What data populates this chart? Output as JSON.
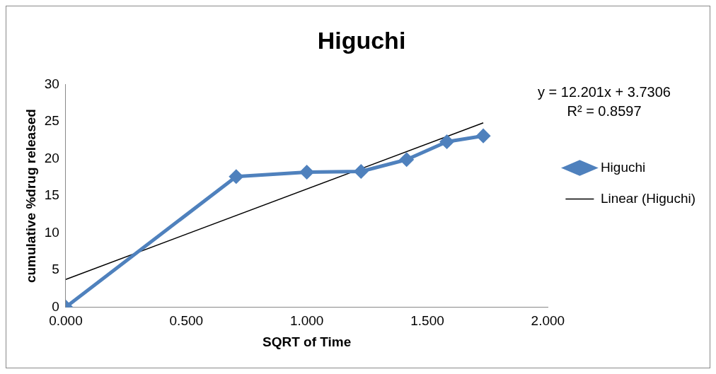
{
  "chart_data": {
    "type": "line",
    "title": "Higuchi",
    "xlabel": "SQRT of Time",
    "ylabel": "cumulative %drug released",
    "x": [
      0,
      0.707,
      1,
      1.225,
      1.414,
      1.581,
      1.732
    ],
    "series": [
      {
        "name": "Higuchi",
        "color": "#4f81bd",
        "values": [
          0,
          17.6,
          18.2,
          18.3,
          19.9,
          22.3,
          23.1
        ],
        "marker": "diamond"
      },
      {
        "name": "Linear (Higuchi)",
        "type": "line",
        "color": "#000000",
        "x": [
          0,
          1.732
        ],
        "values": [
          3.73,
          24.86
        ],
        "marker": "none"
      }
    ],
    "xlim": [
      0,
      2
    ],
    "xticks": [
      {
        "value": 0,
        "label": "0.000"
      },
      {
        "value": 0.5,
        "label": "0.500"
      },
      {
        "value": 1,
        "label": "1.000"
      },
      {
        "value": 1.5,
        "label": "1.500"
      },
      {
        "value": 2,
        "label": "2.000"
      }
    ],
    "ylim": [
      0,
      30
    ],
    "yticks": [
      0,
      5,
      10,
      15,
      20,
      25,
      30
    ],
    "grid": false,
    "legend": "right",
    "annotations": [
      "y = 12.201x + 3.7306",
      "R² = 0.8597"
    ]
  }
}
